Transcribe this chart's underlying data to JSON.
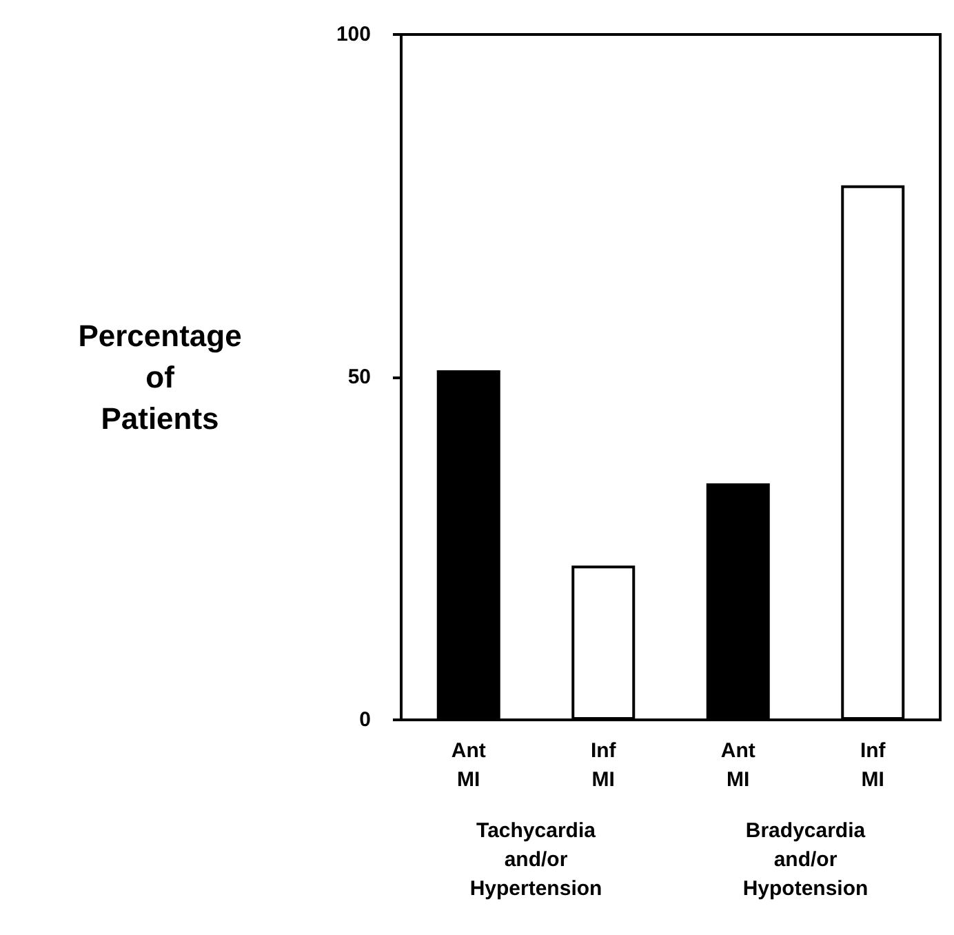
{
  "chart_data": {
    "type": "bar",
    "ylabel": "Percentage of Patients",
    "categories": [
      "Ant MI",
      "Inf MI",
      "Ant MI",
      "Inf MI"
    ],
    "values": [
      51,
      22.5,
      34.5,
      78
    ],
    "colors": [
      "#000000",
      "#ffffff",
      "#000000",
      "#ffffff"
    ],
    "annotations": [
      "Tachycardia and/or Hypertension",
      "Bradycardia and/or Hypotension"
    ],
    "ylim": [
      0,
      100
    ],
    "yticks": [
      0,
      50,
      100
    ],
    "grid": false
  }
}
